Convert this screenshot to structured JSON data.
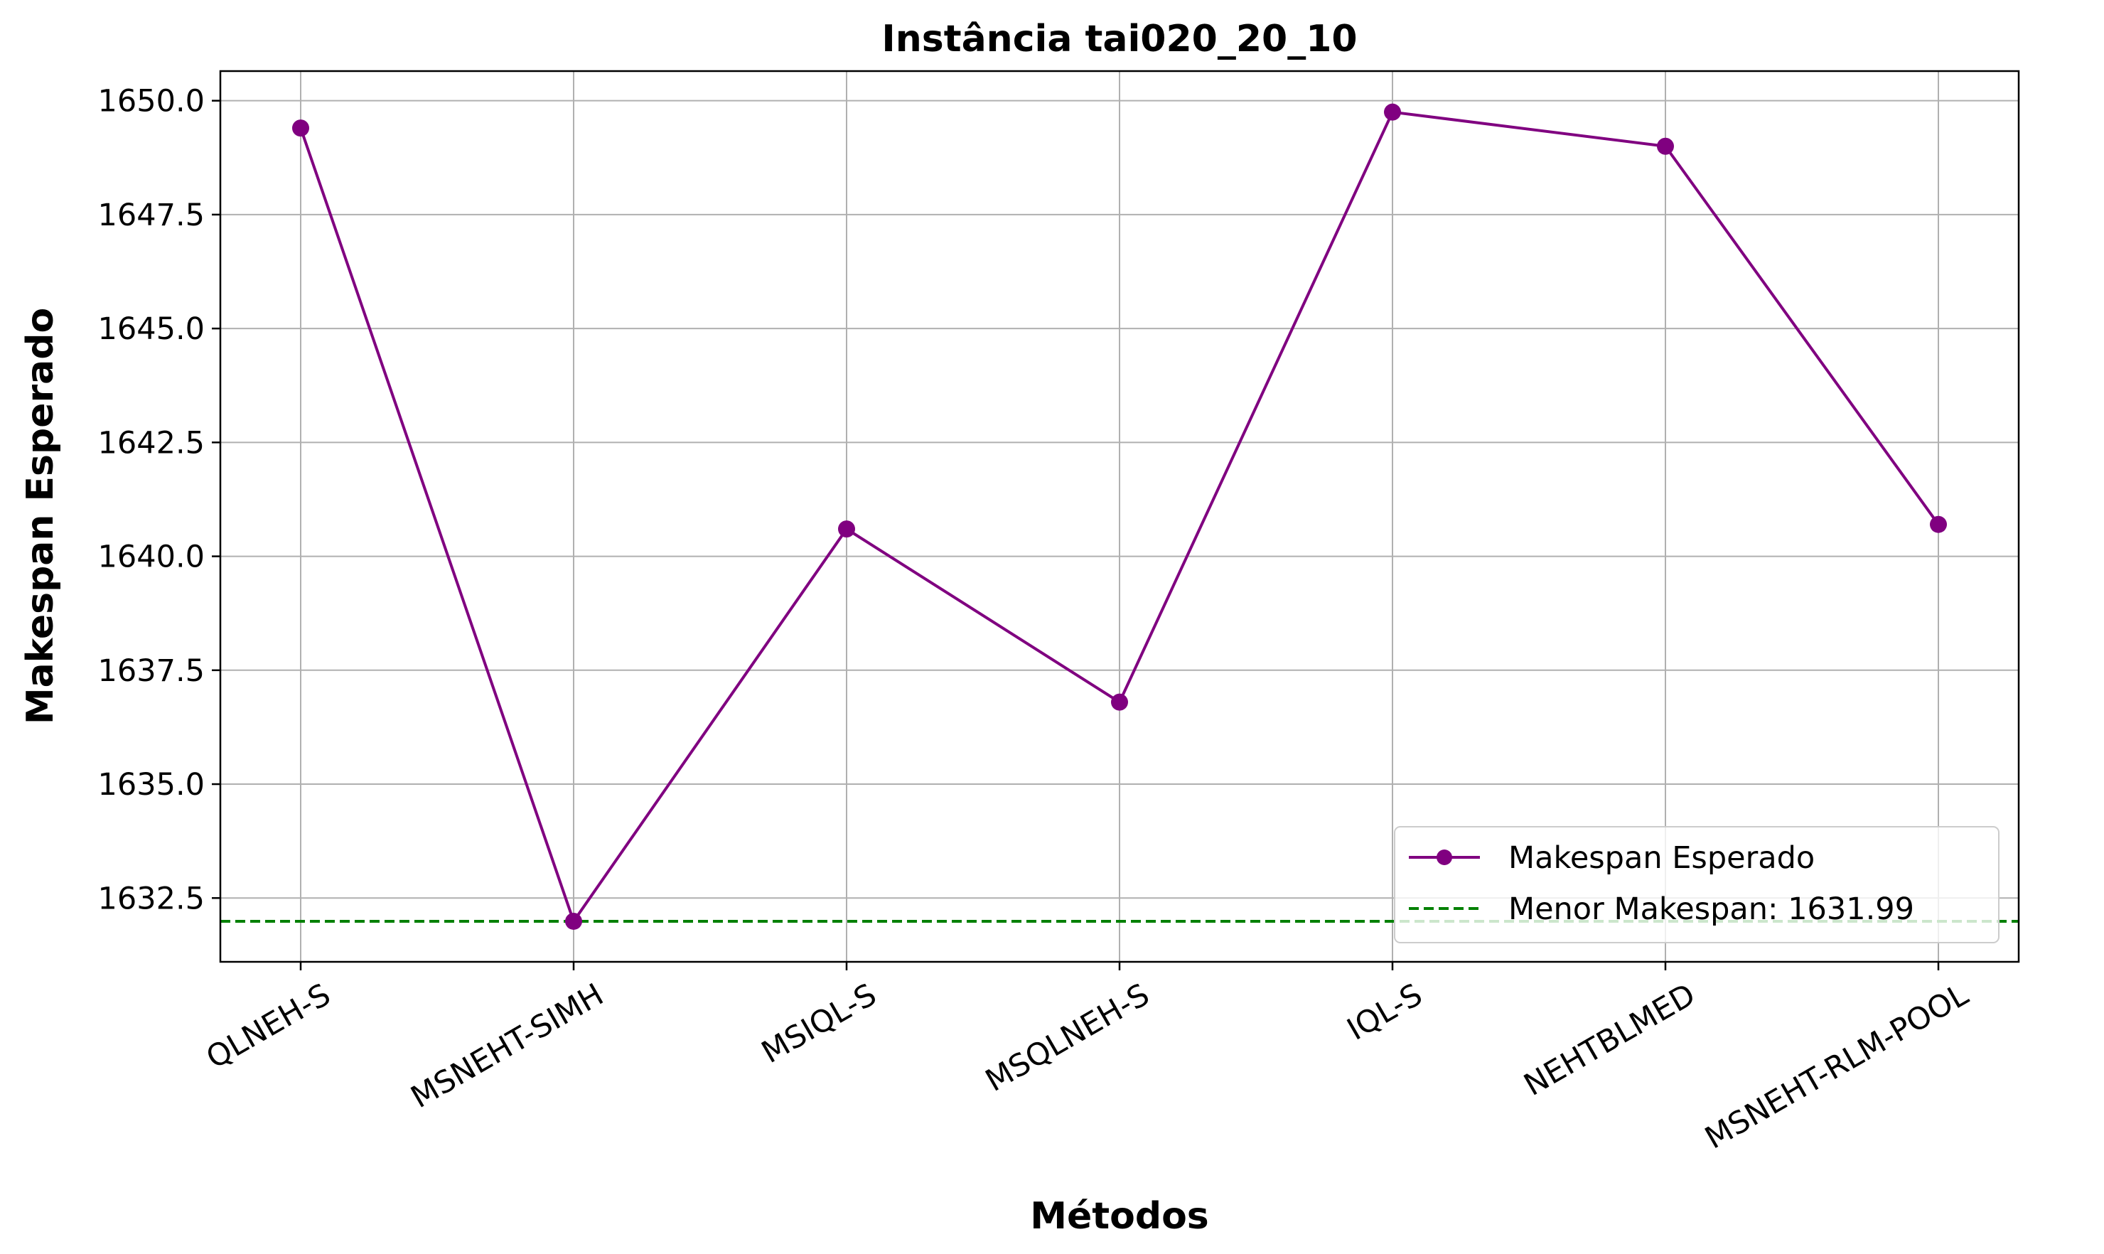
{
  "chart_data": {
    "type": "line",
    "title": "Instância tai020_20_10",
    "xlabel": "Métodos",
    "ylabel": "Makespan Esperado",
    "categories": [
      "QLNEH-S",
      "MSNEHT-SIMH",
      "MSIQL-S",
      "MSQLNEH-S",
      "IQL-S",
      "NEHTBLMED",
      "MSNEHT-RLM-POOL"
    ],
    "series": [
      {
        "name": "Makespan Esperado",
        "values": [
          1649.4,
          1631.99,
          1640.6,
          1636.8,
          1649.75,
          1649.0,
          1640.7
        ],
        "color": "#800080",
        "marker": "circle"
      }
    ],
    "reference_line": {
      "label": "Menor Makespan: 1631.99",
      "value": 1631.99,
      "color": "#008000",
      "style": "dashed"
    },
    "ylim": [
      1631.1,
      1650.65
    ],
    "yticks": [
      1632.5,
      1635.0,
      1637.5,
      1640.0,
      1642.5,
      1645.0,
      1647.5,
      1650.0
    ],
    "ytick_labels": [
      "1632.5",
      "1635.0",
      "1637.5",
      "1640.0",
      "1642.5",
      "1645.0",
      "1647.5",
      "1650.0"
    ],
    "grid": true,
    "legend_position": "lower-right"
  }
}
